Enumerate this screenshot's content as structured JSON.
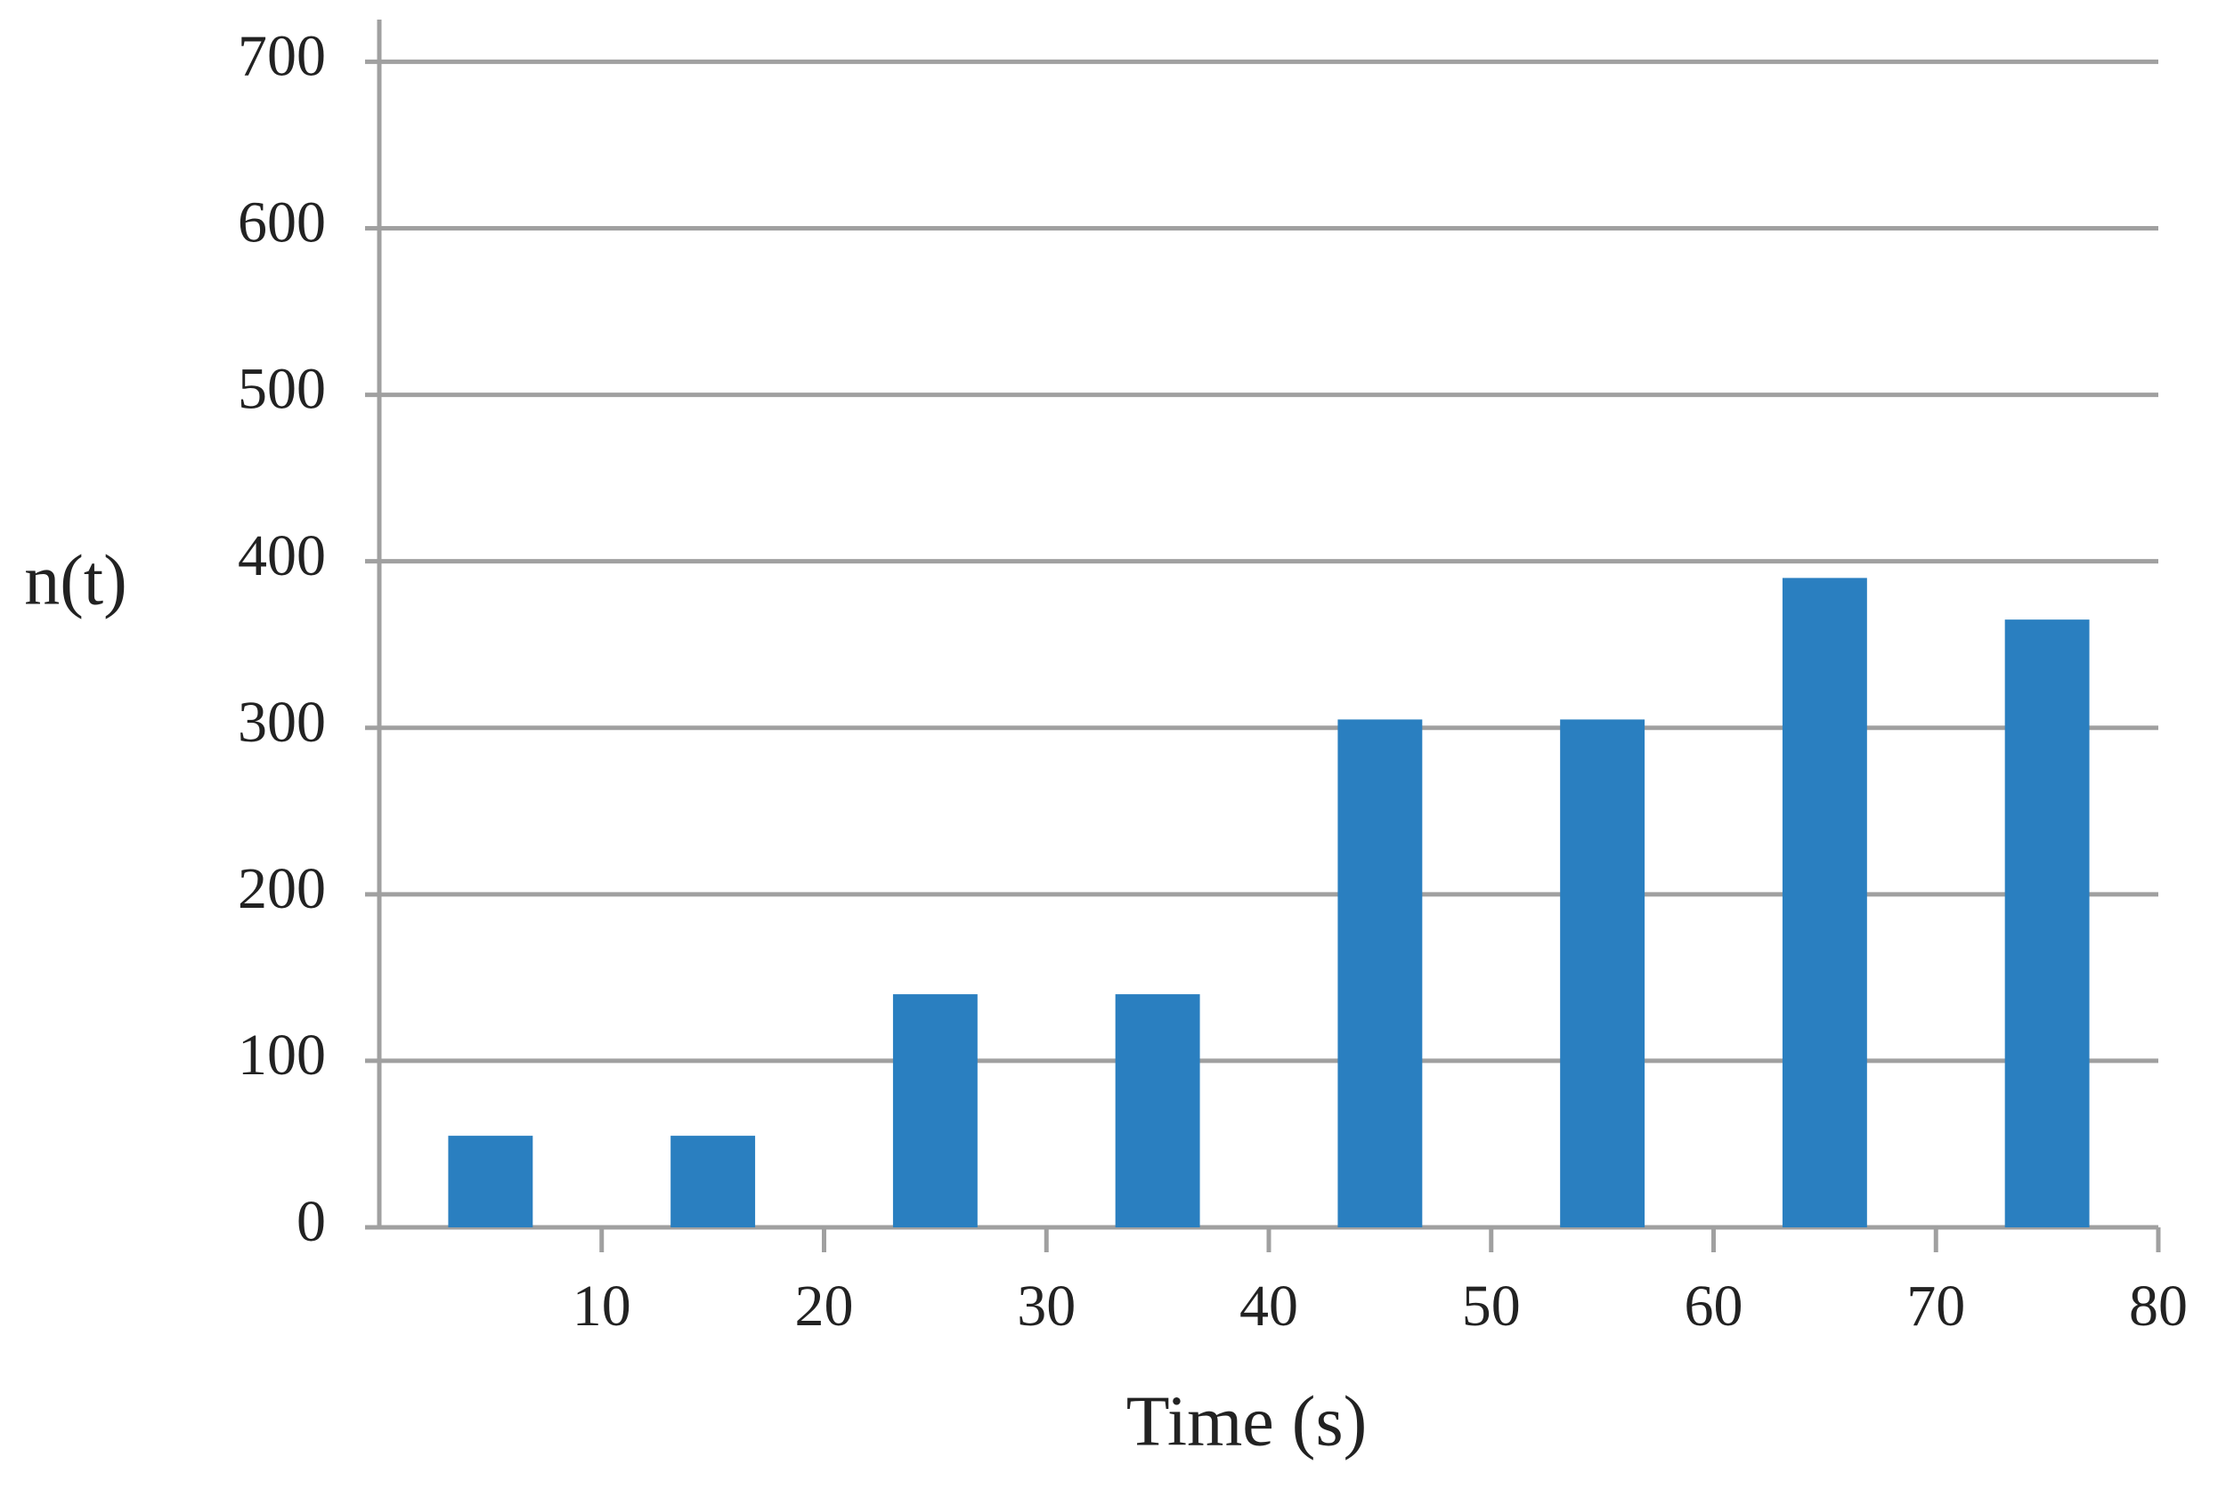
{
  "chart_data": {
    "type": "bar",
    "x_label": "Time (s)",
    "y_label": "n(t)",
    "x": [
      5,
      15,
      25,
      35,
      45,
      55,
      65,
      75
    ],
    "values": [
      55,
      55,
      140,
      140,
      305,
      305,
      390,
      365
    ],
    "bar_width": 3.8,
    "color": "#2a7fc0",
    "xlim": [
      0,
      80
    ],
    "xticks": [
      10,
      20,
      30,
      40,
      50,
      60,
      70,
      80
    ],
    "ylim": [
      0,
      720
    ],
    "yticks": [
      0,
      100,
      200,
      300,
      400,
      500,
      600,
      700
    ],
    "grid": true
  }
}
